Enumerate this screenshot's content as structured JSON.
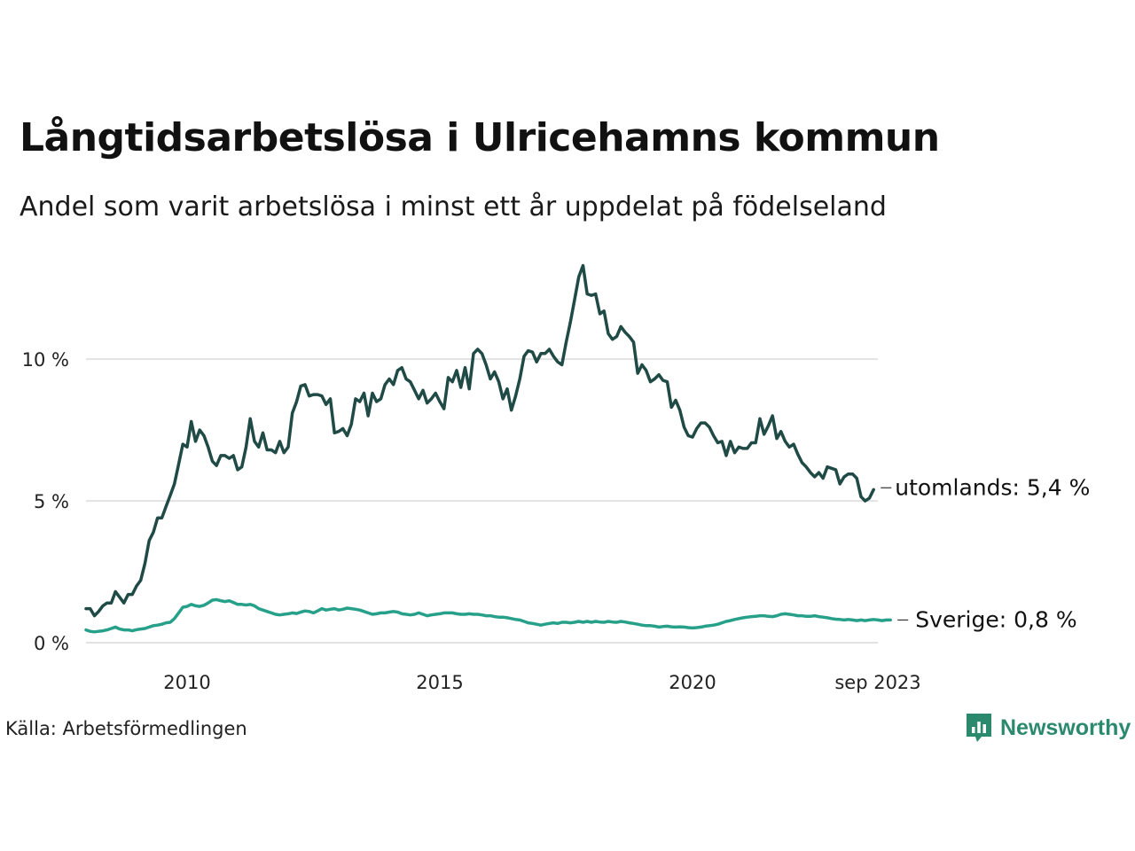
{
  "header": {
    "title": "Långtidsarbetslösa i Ulricehamns kommun",
    "subtitle": "Andel som varit arbetslösa i minst ett år uppdelat på födelseland"
  },
  "footer": {
    "source": "Källa: Arbetsförmedlingen",
    "brand": "Newsworthy",
    "brand_icon": "newsworthy-logo-icon"
  },
  "chart_data": {
    "type": "line",
    "title": "Långtidsarbetslösa i Ulricehamns kommun",
    "subtitle": "Andel som varit arbetslösa i minst ett år uppdelat på födelseland",
    "xlabel": "",
    "ylabel": "",
    "x_start": 2008.0,
    "x_step": 0.0833333,
    "xlim": [
      2008.0,
      2023.667
    ],
    "ylim": [
      0,
      13.6
    ],
    "y_ticks": [
      0,
      5,
      10
    ],
    "y_tick_labels": [
      "0 %",
      "5 %",
      "10 %"
    ],
    "x_ticks": [
      2010,
      2015,
      2020,
      2023.667
    ],
    "x_tick_labels": [
      "2010",
      "2015",
      "2020",
      "sep 2023"
    ],
    "grid": true,
    "series": [
      {
        "name": "utomlands",
        "end_label": "utomlands: 5,4 %",
        "color": "#1f4a45",
        "values": [
          1.2,
          1.2,
          0.95,
          1.1,
          1.3,
          1.4,
          1.4,
          1.8,
          1.6,
          1.4,
          1.7,
          1.7,
          2.0,
          2.2,
          2.8,
          3.6,
          3.9,
          4.4,
          4.4,
          4.8,
          5.2,
          5.6,
          6.3,
          7.0,
          6.9,
          7.8,
          7.1,
          7.5,
          7.3,
          6.9,
          6.4,
          6.25,
          6.6,
          6.6,
          6.5,
          6.6,
          6.1,
          6.2,
          6.9,
          7.9,
          7.1,
          6.9,
          7.4,
          6.8,
          6.8,
          6.7,
          7.1,
          6.7,
          6.9,
          8.1,
          8.5,
          9.05,
          9.1,
          8.7,
          8.75,
          8.75,
          8.7,
          8.4,
          8.6,
          7.4,
          7.45,
          7.55,
          7.3,
          7.7,
          8.6,
          8.5,
          8.8,
          8.0,
          8.8,
          8.5,
          8.6,
          9.1,
          9.3,
          9.1,
          9.6,
          9.7,
          9.3,
          9.2,
          8.9,
          8.6,
          8.9,
          8.45,
          8.6,
          8.8,
          8.5,
          8.25,
          9.35,
          9.2,
          9.6,
          9.0,
          9.7,
          8.95,
          10.2,
          10.35,
          10.2,
          9.8,
          9.3,
          9.55,
          9.2,
          8.6,
          8.95,
          8.2,
          8.7,
          9.3,
          10.1,
          10.3,
          10.25,
          9.9,
          10.2,
          10.2,
          10.35,
          10.1,
          9.9,
          9.8,
          10.6,
          11.3,
          12.1,
          12.9,
          13.3,
          12.3,
          12.25,
          12.3,
          11.6,
          11.7,
          10.9,
          10.7,
          10.8,
          11.15,
          10.95,
          10.8,
          10.6,
          9.5,
          9.8,
          9.6,
          9.2,
          9.3,
          9.45,
          9.25,
          9.2,
          8.3,
          8.55,
          8.2,
          7.6,
          7.3,
          7.25,
          7.55,
          7.75,
          7.75,
          7.6,
          7.3,
          7.05,
          7.1,
          6.6,
          7.1,
          6.7,
          6.9,
          6.85,
          6.85,
          7.05,
          7.05,
          7.9,
          7.35,
          7.65,
          8.0,
          7.2,
          7.45,
          7.1,
          6.9,
          7.0,
          6.65,
          6.35,
          6.2,
          6.0,
          5.85,
          6.0,
          5.8,
          6.2,
          6.15,
          6.1,
          5.6,
          5.85,
          5.95,
          5.95,
          5.8,
          5.15,
          5.0,
          5.1,
          5.4
        ]
      },
      {
        "name": "Sverige",
        "end_label": "Sverige: 0,8 %",
        "color": "#27a08a",
        "values": [
          0.45,
          0.4,
          0.38,
          0.4,
          0.42,
          0.45,
          0.5,
          0.55,
          0.48,
          0.45,
          0.45,
          0.42,
          0.46,
          0.48,
          0.5,
          0.55,
          0.6,
          0.62,
          0.65,
          0.7,
          0.72,
          0.85,
          1.05,
          1.25,
          1.28,
          1.35,
          1.3,
          1.28,
          1.32,
          1.4,
          1.5,
          1.52,
          1.48,
          1.45,
          1.48,
          1.42,
          1.35,
          1.35,
          1.33,
          1.35,
          1.3,
          1.2,
          1.15,
          1.1,
          1.05,
          1.0,
          0.98,
          1.0,
          1.02,
          1.05,
          1.03,
          1.08,
          1.12,
          1.1,
          1.05,
          1.12,
          1.2,
          1.15,
          1.18,
          1.2,
          1.15,
          1.18,
          1.22,
          1.2,
          1.18,
          1.15,
          1.1,
          1.05,
          1.0,
          1.02,
          1.05,
          1.05,
          1.08,
          1.1,
          1.08,
          1.02,
          1.0,
          0.98,
          1.0,
          1.05,
          1.0,
          0.95,
          0.98,
          1.0,
          1.02,
          1.05,
          1.05,
          1.05,
          1.02,
          1.0,
          1.0,
          1.02,
          1.0,
          1.0,
          0.98,
          0.95,
          0.95,
          0.92,
          0.9,
          0.9,
          0.88,
          0.85,
          0.82,
          0.8,
          0.75,
          0.7,
          0.68,
          0.65,
          0.62,
          0.65,
          0.68,
          0.7,
          0.68,
          0.72,
          0.72,
          0.7,
          0.72,
          0.75,
          0.72,
          0.75,
          0.72,
          0.75,
          0.73,
          0.72,
          0.75,
          0.73,
          0.72,
          0.75,
          0.73,
          0.7,
          0.68,
          0.65,
          0.62,
          0.6,
          0.6,
          0.58,
          0.55,
          0.57,
          0.58,
          0.56,
          0.55,
          0.56,
          0.55,
          0.53,
          0.52,
          0.53,
          0.55,
          0.58,
          0.6,
          0.62,
          0.65,
          0.7,
          0.75,
          0.78,
          0.82,
          0.85,
          0.88,
          0.9,
          0.92,
          0.93,
          0.95,
          0.95,
          0.93,
          0.92,
          0.95,
          1.0,
          1.02,
          1.0,
          0.98,
          0.95,
          0.95,
          0.93,
          0.93,
          0.95,
          0.92,
          0.9,
          0.88,
          0.85,
          0.83,
          0.82,
          0.8,
          0.82,
          0.8,
          0.78,
          0.8,
          0.78,
          0.8,
          0.82,
          0.8,
          0.78,
          0.8,
          0.8
        ]
      }
    ]
  }
}
